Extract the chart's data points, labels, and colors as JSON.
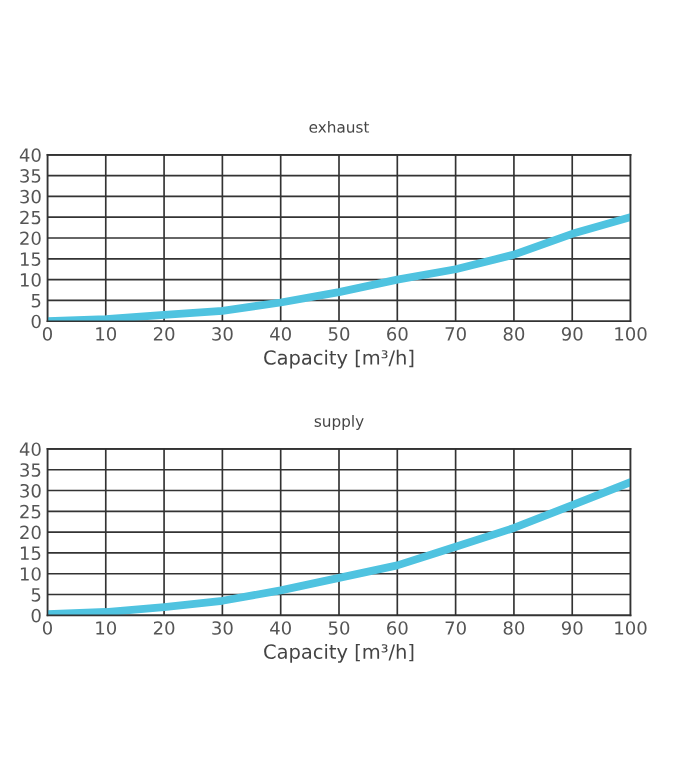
{
  "chart_data": [
    {
      "type": "line",
      "title": "exhaust",
      "xlabel": "Capacity [m³/h]",
      "x": [
        0,
        10,
        20,
        30,
        40,
        50,
        60,
        70,
        80,
        90,
        100
      ],
      "series": [
        {
          "color": "#4fc3e0",
          "values": [
            0,
            0.5,
            1.5,
            2.5,
            4.5,
            7,
            10,
            12.5,
            16,
            21,
            25
          ]
        }
      ],
      "xlim": [
        0,
        100
      ],
      "xticks": [
        0,
        10,
        20,
        30,
        40,
        50,
        60,
        70,
        80,
        90,
        100
      ],
      "ylim": [
        0,
        40
      ],
      "yticks": [
        0,
        5,
        10,
        15,
        20,
        25,
        30,
        35,
        40
      ],
      "grid": true
    },
    {
      "type": "line",
      "title": "supply",
      "xlabel": "Capacity [m³/h]",
      "x": [
        0,
        10,
        20,
        30,
        40,
        50,
        60,
        70,
        80,
        90,
        100
      ],
      "series": [
        {
          "color": "#4fc3e0",
          "values": [
            0.3,
            0.8,
            2,
            3.5,
            6,
            9,
            12,
            16.5,
            21,
            26.5,
            32
          ]
        }
      ],
      "xlim": [
        0,
        100
      ],
      "xticks": [
        0,
        10,
        20,
        30,
        40,
        50,
        60,
        70,
        80,
        90,
        100
      ],
      "ylim": [
        0,
        40
      ],
      "yticks": [
        0,
        5,
        10,
        15,
        20,
        25,
        30,
        35,
        40
      ],
      "grid": true
    }
  ]
}
